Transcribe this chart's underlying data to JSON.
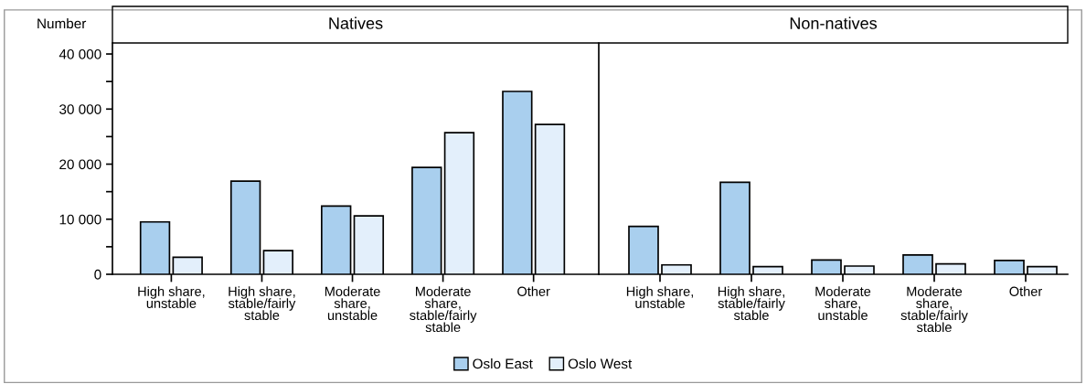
{
  "chart_data": [
    {
      "type": "bar",
      "title": "Natives",
      "ylabel": "Number",
      "categories": [
        "High share,\nunstable",
        "High share,\nstable/fairly\nstable",
        "Moderate\nshare,\nunstable",
        "Moderate\nshare,\nstable/fairly\nstable",
        "Other"
      ],
      "series": [
        {
          "name": "Oslo East",
          "color": "#a9cfee",
          "values": [
            9500,
            16900,
            12400,
            19400,
            33200
          ]
        },
        {
          "name": "Oslo West",
          "color": "#e3effb",
          "values": [
            3100,
            4300,
            10600,
            25700,
            27200
          ]
        }
      ],
      "ylim": [
        0,
        42000
      ],
      "yticks": [
        0,
        {
          "value": 5000,
          "label": null
        },
        {
          "value": 10000,
          "label": "10 000"
        },
        {
          "value": 15000,
          "label": null
        },
        {
          "value": 20000,
          "label": "20 000"
        },
        {
          "value": 25000,
          "label": null
        },
        {
          "value": 30000,
          "label": "30 000"
        },
        {
          "value": 35000,
          "label": null
        },
        {
          "value": 40000,
          "label": "40 000"
        }
      ],
      "grid": false,
      "legend": "bottom"
    },
    {
      "type": "bar",
      "title": "Non-natives",
      "categories": [
        "High share,\nunstable",
        "High share,\nstable/fairly\nstable",
        "Moderate\nshare,\nunstable",
        "Moderate\nshare,\nstable/fairly\nstable",
        "Other"
      ],
      "series": [
        {
          "color": "#a9cfee",
          "values": [
            8700,
            16700,
            2600,
            3500,
            2500
          ]
        },
        {
          "color": "#e3effb",
          "values": [
            1700,
            1400,
            1500,
            1900,
            1400
          ]
        }
      ],
      "ylim": [
        0,
        42000
      ],
      "yticks": [
        0,
        10000,
        20000,
        30000,
        40000
      ],
      "tick_labels": "x",
      "grid": false,
      "legend": false
    }
  ]
}
